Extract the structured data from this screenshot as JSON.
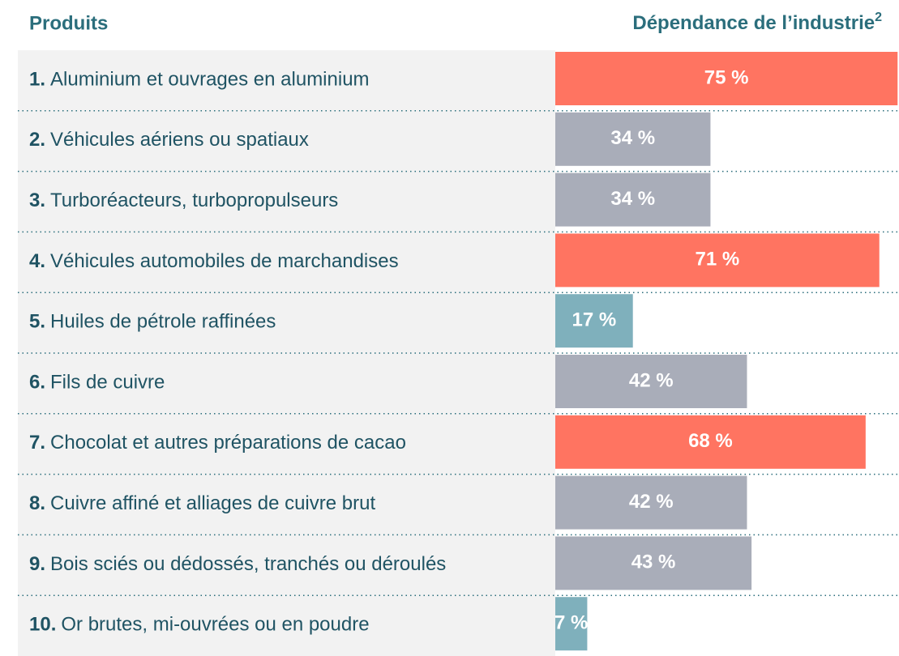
{
  "chart_data": {
    "type": "bar",
    "column_headers": [
      "Produits",
      "Dépendance de l’industrie"
    ],
    "footnote_mark": "2",
    "ranks": [
      "1.",
      "2.",
      "3.",
      "4.",
      "5.",
      "6.",
      "7.",
      "8.",
      "9.",
      "10."
    ],
    "categories": [
      "Aluminium et ouvrages en aluminium",
      "Véhicules aériens ou spatiaux",
      "Turboréacteurs, turbopropulseurs",
      "Véhicules automobiles de marchandises",
      "Huiles de pétrole raffinées",
      "Fils de cuivre",
      "Chocolat et autres préparations de cacao",
      "Cuivre affiné et alliages de cuivre brut",
      "Bois sciés ou dédossés, tranchés ou déroulés",
      "Or brutes, mi-ouvrées ou en poudre"
    ],
    "values": [
      75,
      34,
      34,
      71,
      17,
      42,
      68,
      42,
      43,
      7
    ],
    "value_labels": [
      "75 %",
      "34 %",
      "34 %",
      "71 %",
      "17 %",
      "42 %",
      "68 %",
      "42 %",
      "43 %",
      "7 %"
    ],
    "colors": [
      "#ff7461",
      "#a9adb9",
      "#a9adb9",
      "#ff7461",
      "#7fb0bc",
      "#a9adb9",
      "#ff7461",
      "#a9adb9",
      "#a9adb9",
      "#7fb0bc"
    ]
  }
}
